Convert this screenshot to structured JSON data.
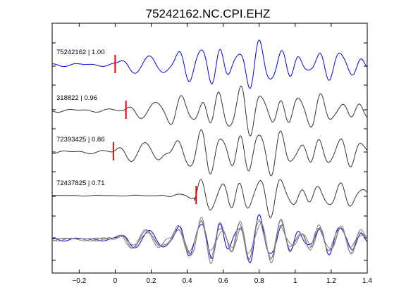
{
  "chart_data": {
    "type": "line",
    "title": "75242162.NC.CPI.EHZ",
    "xlim": [
      -0.35,
      1.4
    ],
    "x_ticks": [
      -0.2,
      0,
      0.2,
      0.4,
      0.6,
      0.8,
      1,
      1.2,
      1.4
    ],
    "x_tick_labels": [
      "−0.2",
      "0",
      "0.2",
      "0.4",
      "0.6",
      "0.8",
      "1",
      "1.2",
      "1.4"
    ],
    "grid": false,
    "traces": [
      {
        "label": "75242162 | 1.00",
        "color": "#0000ee",
        "pick": 0.0,
        "onset": 0.0,
        "amp": 1.0,
        "seed": 1
      },
      {
        "label": "318822 | 0.96",
        "color": "#333333",
        "pick": 0.06,
        "onset": 0.04,
        "amp": 1.0,
        "seed": 2
      },
      {
        "label": "72393425 | 0.86",
        "color": "#333333",
        "pick": -0.01,
        "onset": -0.02,
        "amp": 1.0,
        "seed": 3
      },
      {
        "label": "72437825 | 0.71",
        "color": "#333333",
        "pick": 0.45,
        "onset": 0.44,
        "amp": 0.85,
        "seed": 4
      }
    ],
    "stack": {
      "traces_overlaid": 4,
      "colors": [
        "#0000ee",
        "#808080"
      ]
    }
  }
}
